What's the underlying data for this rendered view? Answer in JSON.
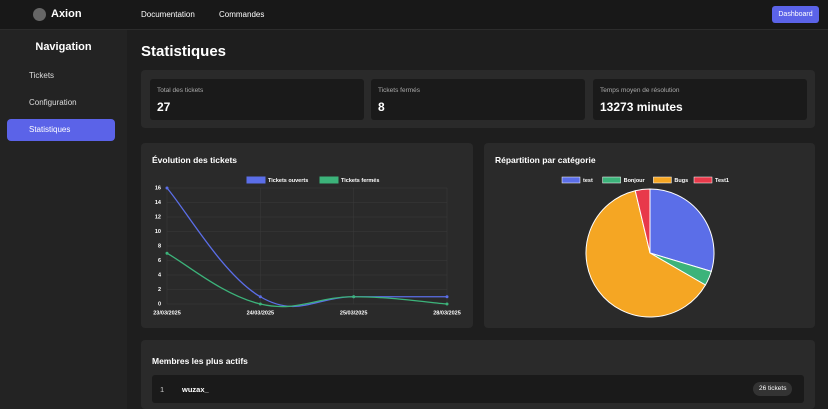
{
  "header": {
    "brand": "Axion",
    "links": [
      "Documentation",
      "Commandes"
    ],
    "button": "Dashboard"
  },
  "sidebar": {
    "title": "Navigation",
    "items": [
      "Tickets",
      "Configuration",
      "Statistiques"
    ],
    "active": 2
  },
  "page_title": "Statistiques",
  "stats": [
    {
      "label": "Total des tickets",
      "value": "27"
    },
    {
      "label": "Tickets fermés",
      "value": "8"
    },
    {
      "label": "Temps moyen de résolution",
      "value": "13273 minutes"
    }
  ],
  "line_chart": {
    "type": "line",
    "title": "Évolution des tickets",
    "x": [
      "23/03/2025",
      "24/03/2025",
      "25/03/2025",
      "28/03/2025"
    ],
    "series": [
      {
        "name": "Tickets ouverts",
        "color": "#5b6ee8",
        "values": [
          16,
          1,
          1,
          1
        ]
      },
      {
        "name": "Tickets fermés",
        "color": "#3cb37a",
        "values": [
          7,
          0,
          1,
          0
        ]
      }
    ],
    "ylim": [
      0,
      16
    ],
    "yticks": [
      0,
      2,
      4,
      6,
      8,
      10,
      12,
      14,
      16
    ],
    "grid": true
  },
  "pie_chart": {
    "type": "pie",
    "title": "Répartition par catégorie",
    "categories": [
      "test",
      "Bonjour",
      "Bugs",
      "Test1"
    ],
    "values": [
      8,
      1,
      17,
      1
    ],
    "colors": [
      "#5b6ee8",
      "#3cb37a",
      "#f5a623",
      "#e8394a"
    ]
  },
  "members": {
    "title": "Membres les plus actifs",
    "rows": [
      {
        "rank": "1",
        "name": "wuzax_",
        "count": "26 tickets"
      }
    ]
  }
}
